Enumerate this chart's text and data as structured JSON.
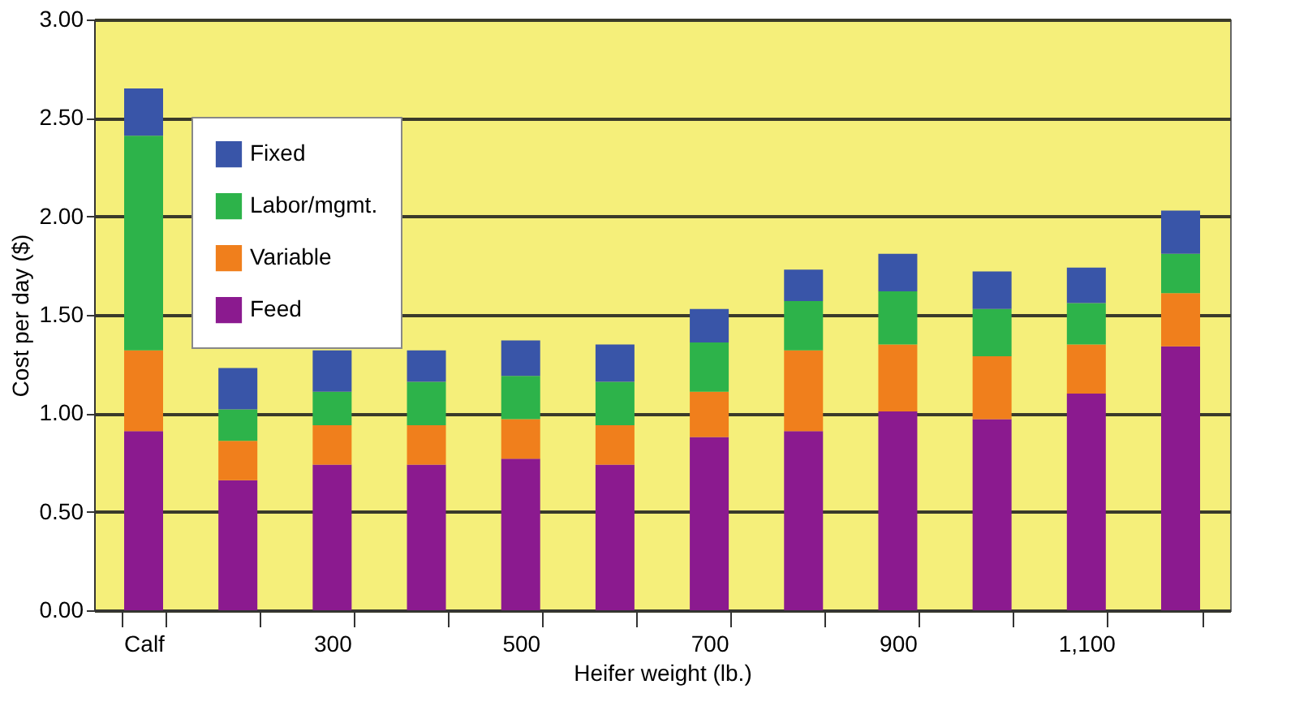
{
  "chart_data": {
    "type": "bar",
    "stacked": true,
    "xlabel": "Heifer weight (lb.)",
    "ylabel": "Cost per day ($)",
    "categories": [
      "Calf",
      null,
      "300",
      null,
      "500",
      null,
      "700",
      null,
      "900",
      null,
      "1,100",
      null
    ],
    "series": [
      {
        "name": "Feed",
        "color": "#8b1a8f",
        "values": [
          0.91,
          0.66,
          0.74,
          0.74,
          0.77,
          0.74,
          0.88,
          0.91,
          1.01,
          0.97,
          1.1,
          1.34
        ]
      },
      {
        "name": "Variable",
        "color": "#f07f1c",
        "values": [
          0.41,
          0.2,
          0.2,
          0.2,
          0.2,
          0.2,
          0.23,
          0.41,
          0.34,
          0.32,
          0.25,
          0.27
        ]
      },
      {
        "name": "Labor/mgmt.",
        "color": "#2db34a",
        "values": [
          1.09,
          0.16,
          0.17,
          0.22,
          0.22,
          0.22,
          0.25,
          0.25,
          0.27,
          0.24,
          0.21,
          0.2
        ]
      },
      {
        "name": "Fixed",
        "color": "#3955a8",
        "values": [
          0.24,
          0.21,
          0.21,
          0.16,
          0.18,
          0.19,
          0.17,
          0.16,
          0.19,
          0.19,
          0.18,
          0.22
        ]
      }
    ],
    "ylim": [
      0,
      3
    ],
    "yticks": [
      {
        "value": 0,
        "label": "0.00"
      },
      {
        "value": 0.5,
        "label": "0.50"
      },
      {
        "value": 1,
        "label": "1.00"
      },
      {
        "value": 1.5,
        "label": "1.50"
      },
      {
        "value": 2,
        "label": "2.00"
      },
      {
        "value": 2.5,
        "label": "2.50"
      },
      {
        "value": 3,
        "label": "3.00"
      }
    ],
    "grid": "y",
    "legend": "top left"
  }
}
